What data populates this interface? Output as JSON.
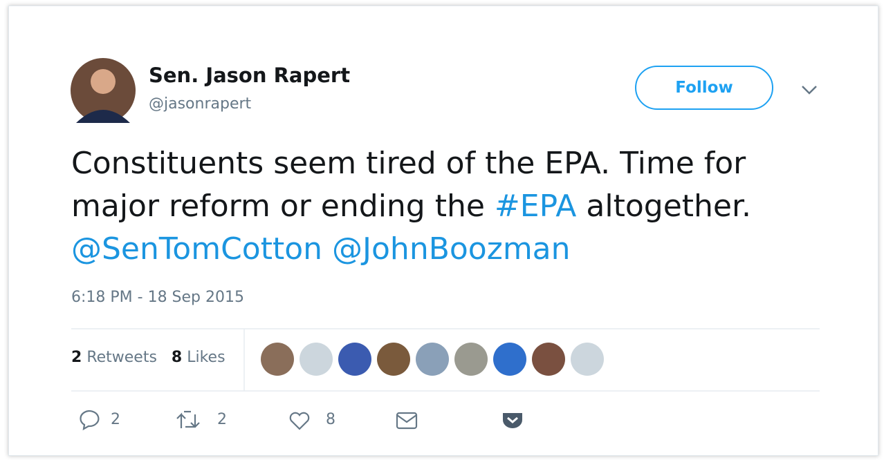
{
  "author": {
    "name": "Sen. Jason Rapert",
    "handle": "@jasonrapert"
  },
  "follow_button": "Follow",
  "tweet": {
    "text": [
      "Constituents seem tired of the EPA. Time for major reform or ending the ",
      "#EPA",
      " altogether.",
      "@SenTomCotton",
      "@JohnBoozman"
    ],
    "timestamp": "6:18 PM - 18 Sep 2015"
  },
  "stats": {
    "retweets": {
      "count": 2,
      "label": "Retweets"
    },
    "likes": {
      "count": 8,
      "label": "Likes"
    }
  },
  "actions": {
    "replies": 2,
    "retweets": 2,
    "likes": 8
  }
}
